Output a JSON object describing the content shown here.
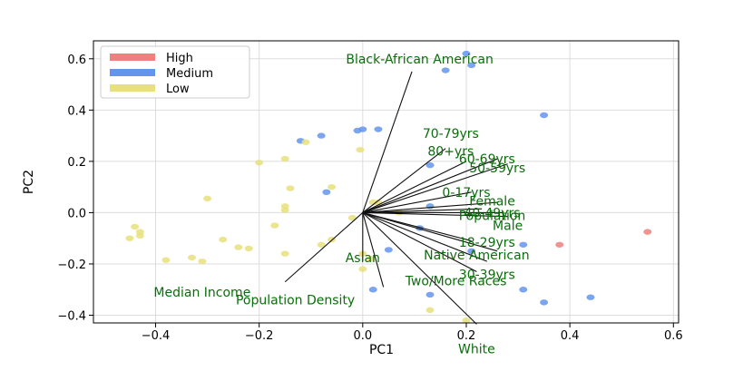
{
  "chart_data": {
    "type": "scatter",
    "xlabel": "PC1",
    "ylabel": "PC2",
    "xlim": [
      -0.52,
      0.61
    ],
    "ylim": [
      -0.43,
      0.67
    ],
    "x_ticks": [
      -0.4,
      -0.2,
      0.0,
      0.2,
      0.4,
      0.6
    ],
    "y_ticks": [
      -0.4,
      -0.2,
      0.0,
      0.2,
      0.4,
      0.6
    ],
    "x_tick_labels": [
      "−0.4",
      "−0.2",
      "0.0",
      "0.2",
      "0.4",
      "0.6"
    ],
    "y_tick_labels": [
      "−0.4",
      "−0.2",
      "0.0",
      "0.2",
      "0.4",
      "0.6"
    ],
    "grid": true,
    "legend_position": "top-left",
    "series": [
      {
        "name": "High",
        "color": "#f08080",
        "points": [
          [
            0.55,
            -0.075
          ],
          [
            0.38,
            -0.125
          ]
        ]
      },
      {
        "name": "Medium",
        "color": "#6495ed",
        "points": [
          [
            0.2,
            0.62
          ],
          [
            0.21,
            0.575
          ],
          [
            0.16,
            0.555
          ],
          [
            0.35,
            0.38
          ],
          [
            -0.12,
            0.28
          ],
          [
            -0.08,
            0.3
          ],
          [
            -0.01,
            0.32
          ],
          [
            0.0,
            0.325
          ],
          [
            0.03,
            0.325
          ],
          [
            0.13,
            0.185
          ],
          [
            -0.07,
            0.08
          ],
          [
            0.13,
            0.025
          ],
          [
            0.11,
            -0.06
          ],
          [
            0.21,
            -0.15
          ],
          [
            0.31,
            -0.125
          ],
          [
            0.05,
            -0.145
          ],
          [
            0.02,
            -0.3
          ],
          [
            0.31,
            -0.3
          ],
          [
            0.35,
            -0.35
          ],
          [
            0.44,
            -0.33
          ],
          [
            0.13,
            -0.32
          ]
        ]
      },
      {
        "name": "Low",
        "color": "#e8e07c",
        "points": [
          [
            -0.005,
            0.245
          ],
          [
            -0.11,
            0.275
          ],
          [
            -0.15,
            0.21
          ],
          [
            -0.2,
            0.195
          ],
          [
            -0.3,
            0.055
          ],
          [
            -0.14,
            0.095
          ],
          [
            -0.06,
            0.1
          ],
          [
            -0.15,
            0.01
          ],
          [
            -0.17,
            -0.05
          ],
          [
            -0.44,
            -0.055
          ],
          [
            -0.43,
            -0.075
          ],
          [
            -0.45,
            -0.1
          ],
          [
            -0.43,
            -0.09
          ],
          [
            -0.27,
            -0.105
          ],
          [
            -0.24,
            -0.135
          ],
          [
            -0.22,
            -0.14
          ],
          [
            -0.15,
            -0.16
          ],
          [
            -0.08,
            -0.125
          ],
          [
            -0.06,
            -0.105
          ],
          [
            -0.38,
            -0.185
          ],
          [
            -0.33,
            -0.175
          ],
          [
            -0.31,
            -0.19
          ],
          [
            0.0,
            -0.16
          ],
          [
            0.015,
            -0.18
          ],
          [
            0.0,
            -0.22
          ],
          [
            0.02,
            0.04
          ],
          [
            0.03,
            0.04
          ],
          [
            -0.02,
            -0.02
          ],
          [
            0.07,
            0.0
          ],
          [
            0.13,
            -0.38
          ],
          [
            0.2,
            -0.42
          ],
          [
            -0.15,
            0.025
          ]
        ]
      }
    ],
    "vectors": [
      {
        "label": "Black-African American",
        "end": [
          0.095,
          0.55
        ],
        "text_pos": [
          0.11,
          0.6
        ]
      },
      {
        "label": "70-79yrs",
        "end": [
          0.16,
          0.25
        ],
        "text_pos": [
          0.17,
          0.31
        ]
      },
      {
        "label": "80+yrs",
        "end": [
          0.2,
          0.2
        ],
        "text_pos": [
          0.17,
          0.24
        ]
      },
      {
        "label": "60-69yrs",
        "end": [
          0.26,
          0.21
        ],
        "text_pos": [
          0.24,
          0.21
        ]
      },
      {
        "label": "50-59yrs",
        "end": [
          0.28,
          0.19
        ],
        "text_pos": [
          0.26,
          0.175
        ]
      },
      {
        "label": "0-17yrs",
        "end": [
          0.21,
          0.08
        ],
        "text_pos": [
          0.2,
          0.08
        ]
      },
      {
        "label": "Female",
        "end": [
          0.26,
          0.04
        ],
        "text_pos": [
          0.25,
          0.045
        ]
      },
      {
        "label": "40-49yrs",
        "end": [
          0.23,
          0.015
        ],
        "text_pos": [
          0.25,
          0.0
        ]
      },
      {
        "label": "Population",
        "end": [
          0.27,
          0.0
        ],
        "text_pos": [
          0.25,
          -0.01
        ]
      },
      {
        "label": "Male",
        "end": [
          0.28,
          -0.015
        ],
        "text_pos": [
          0.28,
          -0.05
        ]
      },
      {
        "label": "18-29yrs",
        "end": [
          0.21,
          -0.11
        ],
        "text_pos": [
          0.24,
          -0.115
        ]
      },
      {
        "label": "Native American",
        "end": [
          0.26,
          -0.15
        ],
        "text_pos": [
          0.22,
          -0.165
        ]
      },
      {
        "label": "30-39yrs",
        "end": [
          0.24,
          -0.19
        ],
        "text_pos": [
          0.24,
          -0.24
        ]
      },
      {
        "label": "Two/More Races",
        "end": [
          0.22,
          -0.23
        ],
        "text_pos": [
          0.18,
          -0.265
        ]
      },
      {
        "label": "Asian",
        "end": [
          0.0,
          -0.19
        ],
        "text_pos": [
          0.0,
          -0.175
        ]
      },
      {
        "label": "Median Income",
        "end": [
          -0.15,
          -0.27
        ],
        "text_pos": [
          -0.31,
          -0.31
        ]
      },
      {
        "label": "Population Density",
        "end": [
          0.04,
          -0.29
        ],
        "text_pos": [
          -0.13,
          -0.34
        ]
      },
      {
        "label": "White",
        "end": [
          0.22,
          -0.435
        ],
        "text_pos": [
          0.22,
          -0.53
        ]
      }
    ],
    "vector_label_color": "#0a6e0a"
  }
}
